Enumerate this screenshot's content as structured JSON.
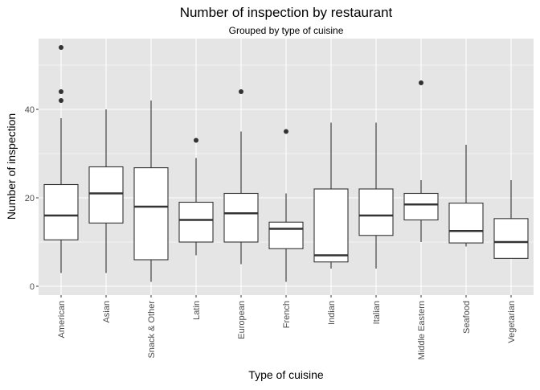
{
  "chart_data": {
    "type": "boxplot",
    "title": "Number of inspection by restaurant",
    "subtitle": "Grouped by type of cuisine",
    "xlabel": "Type of cuisine",
    "ylabel": "Number of inspection",
    "ylim": [
      -2,
      56
    ],
    "yticks": [
      0,
      20,
      40
    ],
    "grid": true,
    "colors": {
      "panel": "#e5e5e5",
      "grid_major": "#ffffff",
      "box_fill": "#ffffff",
      "line": "#333333",
      "text": "#000000",
      "tick_text": "#4d4d4d"
    },
    "categories": [
      "American",
      "Asian",
      "Snack & Other",
      "Latin",
      "European",
      "French",
      "Indian",
      "Italian",
      "Middle Eastern",
      "Seafood",
      "Vegetarian"
    ],
    "boxes": [
      {
        "category": "American",
        "whisker_low": 3,
        "q1": 10.5,
        "median": 16,
        "q3": 23,
        "whisker_high": 38,
        "outliers": [
          42,
          44,
          54
        ]
      },
      {
        "category": "Asian",
        "whisker_low": 3,
        "q1": 14.3,
        "median": 21,
        "q3": 27,
        "whisker_high": 40,
        "outliers": []
      },
      {
        "category": "Snack & Other",
        "whisker_low": 1,
        "q1": 6,
        "median": 18,
        "q3": 26.8,
        "whisker_high": 42,
        "outliers": []
      },
      {
        "category": "Latin",
        "whisker_low": 7,
        "q1": 10,
        "median": 15,
        "q3": 19,
        "whisker_high": 29,
        "outliers": [
          33
        ]
      },
      {
        "category": "European",
        "whisker_low": 5,
        "q1": 10,
        "median": 16.5,
        "q3": 21,
        "whisker_high": 35,
        "outliers": [
          44
        ]
      },
      {
        "category": "French",
        "whisker_low": 1,
        "q1": 8.5,
        "median": 13,
        "q3": 14.5,
        "whisker_high": 21,
        "outliers": [
          35
        ]
      },
      {
        "category": "Indian",
        "whisker_low": 4,
        "q1": 5.5,
        "median": 7,
        "q3": 22,
        "whisker_high": 37,
        "outliers": []
      },
      {
        "category": "Italian",
        "whisker_low": 4,
        "q1": 11.5,
        "median": 16,
        "q3": 22,
        "whisker_high": 37,
        "outliers": []
      },
      {
        "category": "Middle Eastern",
        "whisker_low": 10,
        "q1": 15,
        "median": 18.5,
        "q3": 21,
        "whisker_high": 24,
        "outliers": [
          46
        ]
      },
      {
        "category": "Seafood",
        "whisker_low": 9,
        "q1": 9.8,
        "median": 12.5,
        "q3": 18.8,
        "whisker_high": 32,
        "outliers": []
      },
      {
        "category": "Vegetarian",
        "whisker_low": 6.3,
        "q1": 6.3,
        "median": 10,
        "q3": 15.3,
        "whisker_high": 24,
        "outliers": []
      }
    ]
  }
}
